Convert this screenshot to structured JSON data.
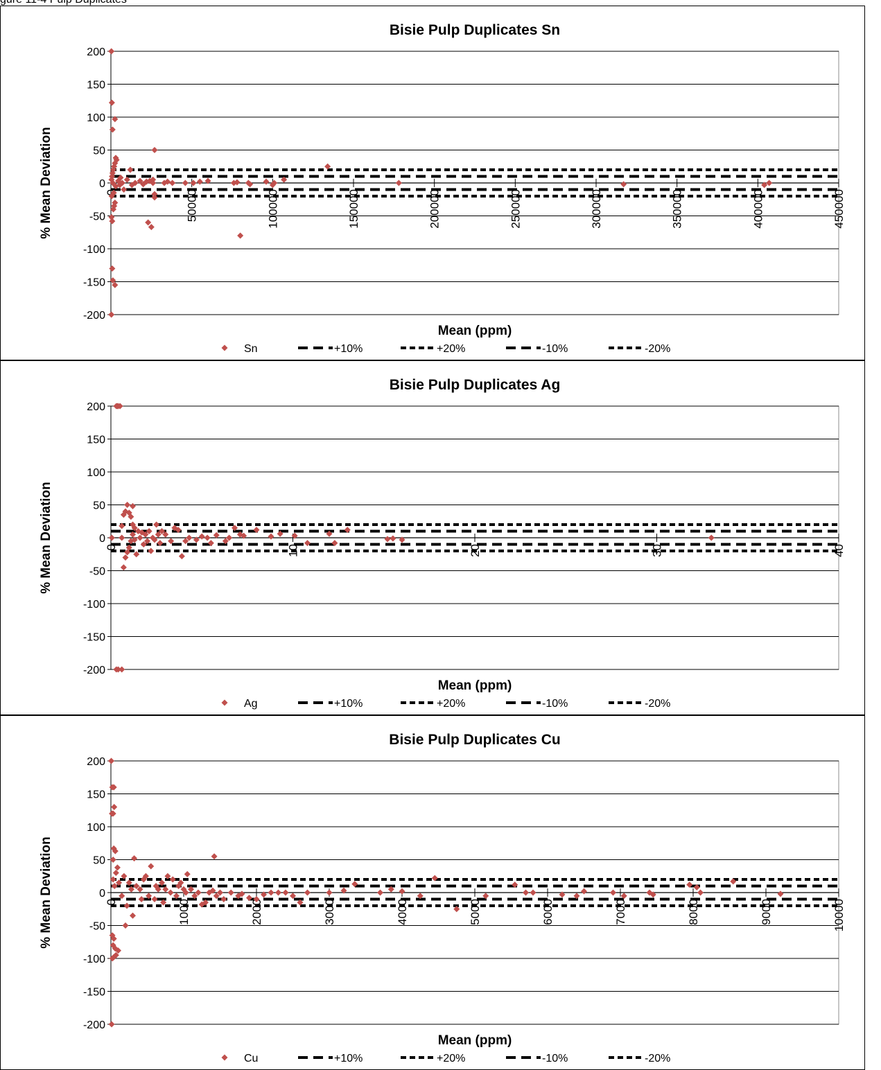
{
  "caption": "gure 11-4 Pulp Duplicates",
  "colors": {
    "points": "#c0504d",
    "limits": "#000000",
    "grid": "#000000"
  },
  "chart_data": [
    {
      "type": "scatter",
      "title": "Bisie Pulp Duplicates Sn",
      "xlabel": "Mean (ppm)",
      "ylabel": "% Mean Deviation",
      "xlim": [
        0,
        450000
      ],
      "ylim": [
        -200,
        200
      ],
      "xticks": [
        0,
        50000,
        100000,
        150000,
        200000,
        250000,
        300000,
        350000,
        400000,
        450000
      ],
      "yticks": [
        200,
        150,
        100,
        50,
        0,
        -50,
        -100,
        -150,
        -200
      ],
      "grid": "horizontal",
      "legend_position": "bottom",
      "legend": [
        "Sn",
        "+10%",
        "+20%",
        "-10%",
        "-20%"
      ],
      "limit_lines": {
        "+10%": 10,
        "+20%": 20,
        "-10%": -10,
        "-20%": -20
      },
      "series": [
        {
          "name": "Sn",
          "points": [
            [
              300,
              200
            ],
            [
              600,
              122
            ],
            [
              1000,
              81
            ],
            [
              2500,
              97
            ],
            [
              800,
              -130
            ],
            [
              1200,
              -148
            ],
            [
              2500,
              -155
            ],
            [
              300,
              -200
            ],
            [
              400,
              -52
            ],
            [
              800,
              -58
            ],
            [
              1500,
              -40
            ],
            [
              2000,
              -35
            ],
            [
              2500,
              -30
            ],
            [
              500,
              -20
            ],
            [
              1800,
              -15
            ],
            [
              400,
              5
            ],
            [
              700,
              10
            ],
            [
              1000,
              15
            ],
            [
              1500,
              20
            ],
            [
              2000,
              25
            ],
            [
              2500,
              30
            ],
            [
              3000,
              38
            ],
            [
              3500,
              35
            ],
            [
              1200,
              0
            ],
            [
              3000,
              -5
            ],
            [
              4500,
              3
            ],
            [
              5500,
              -3
            ],
            [
              6000,
              8
            ],
            [
              7000,
              0
            ],
            [
              8000,
              -10
            ],
            [
              10000,
              5
            ],
            [
              12000,
              20
            ],
            [
              13000,
              -3
            ],
            [
              15000,
              0
            ],
            [
              18000,
              3
            ],
            [
              20000,
              -2
            ],
            [
              22000,
              2
            ],
            [
              24000,
              3
            ],
            [
              23000,
              -60
            ],
            [
              25000,
              -67
            ],
            [
              26000,
              5
            ],
            [
              27000,
              50
            ],
            [
              27000,
              -17
            ],
            [
              27000,
              -22
            ],
            [
              26000,
              0
            ],
            [
              33000,
              0
            ],
            [
              35000,
              2
            ],
            [
              38000,
              0
            ],
            [
              46000,
              0
            ],
            [
              51000,
              0
            ],
            [
              55000,
              2
            ],
            [
              60000,
              3
            ],
            [
              76000,
              0
            ],
            [
              78000,
              1
            ],
            [
              80000,
              -80
            ],
            [
              85000,
              0
            ],
            [
              86000,
              -2
            ],
            [
              96000,
              2
            ],
            [
              100000,
              -3
            ],
            [
              101000,
              0
            ],
            [
              107000,
              5
            ],
            [
              134000,
              25
            ],
            [
              178000,
              0
            ],
            [
              317000,
              -2
            ],
            [
              404000,
              -3
            ],
            [
              407000,
              0
            ]
          ]
        },
        {
          "name": "+10%",
          "value": 10
        },
        {
          "name": "+20%",
          "value": 20
        },
        {
          "name": "-10%",
          "value": -10
        },
        {
          "name": "-20%",
          "value": -20
        }
      ]
    },
    {
      "type": "scatter",
      "title": "Bisie Pulp Duplicates Ag",
      "xlabel": "Mean (ppm)",
      "ylabel": "% Mean Deviation",
      "xlim": [
        0,
        40
      ],
      "ylim": [
        -200,
        200
      ],
      "xticks": [
        0,
        10,
        20,
        30,
        40
      ],
      "yticks": [
        200,
        150,
        100,
        50,
        0,
        -50,
        -100,
        -150,
        -200
      ],
      "grid": "horizontal",
      "legend_position": "bottom",
      "legend": [
        "Ag",
        "+10%",
        "+20%",
        "-10%",
        "-20%"
      ],
      "limit_lines": {
        "+10%": 10,
        "+20%": 20,
        "-10%": -10,
        "-20%": -20
      },
      "series": [
        {
          "name": "Ag",
          "points": [
            [
              0.05,
              0
            ],
            [
              0.3,
              200
            ],
            [
              0.35,
              200
            ],
            [
              0.4,
              200
            ],
            [
              0.5,
              200
            ],
            [
              0.3,
              -200
            ],
            [
              0.4,
              -200
            ],
            [
              0.6,
              -200
            ],
            [
              0.6,
              18
            ],
            [
              0.7,
              35
            ],
            [
              0.8,
              40
            ],
            [
              0.9,
              50
            ],
            [
              1.0,
              38
            ],
            [
              1.1,
              32
            ],
            [
              1.2,
              48
            ],
            [
              1.2,
              20
            ],
            [
              1.3,
              15
            ],
            [
              0.6,
              0
            ],
            [
              0.7,
              -45
            ],
            [
              0.8,
              -30
            ],
            [
              0.9,
              -22
            ],
            [
              1.0,
              -15
            ],
            [
              1.1,
              -5
            ],
            [
              1.2,
              5
            ],
            [
              1.3,
              -3
            ],
            [
              1.4,
              -25
            ],
            [
              1.5,
              10
            ],
            [
              1.6,
              0
            ],
            [
              1.7,
              8
            ],
            [
              1.8,
              -10
            ],
            [
              1.9,
              5
            ],
            [
              2.0,
              -5
            ],
            [
              2.1,
              10
            ],
            [
              2.2,
              -20
            ],
            [
              2.3,
              0
            ],
            [
              2.4,
              -3
            ],
            [
              2.5,
              20
            ],
            [
              2.6,
              5
            ],
            [
              2.7,
              -8
            ],
            [
              2.8,
              10
            ],
            [
              3.0,
              5
            ],
            [
              3.3,
              -5
            ],
            [
              3.5,
              15
            ],
            [
              3.7,
              12
            ],
            [
              3.9,
              -28
            ],
            [
              4.1,
              -5
            ],
            [
              4.3,
              0
            ],
            [
              4.7,
              -3
            ],
            [
              5.0,
              2
            ],
            [
              5.3,
              0
            ],
            [
              5.5,
              -8
            ],
            [
              5.8,
              4
            ],
            [
              6.3,
              -5
            ],
            [
              6.5,
              0
            ],
            [
              6.8,
              15
            ],
            [
              7.1,
              5
            ],
            [
              7.3,
              3
            ],
            [
              8.0,
              12
            ],
            [
              8.8,
              2
            ],
            [
              9.3,
              6
            ],
            [
              10.1,
              3
            ],
            [
              10.8,
              -8
            ],
            [
              12.0,
              6
            ],
            [
              12.3,
              -8
            ],
            [
              13.0,
              12
            ],
            [
              15.2,
              -2
            ],
            [
              15.5,
              -1
            ],
            [
              16.0,
              -3
            ],
            [
              33.0,
              0
            ]
          ]
        },
        {
          "name": "+10%",
          "value": 10
        },
        {
          "name": "+20%",
          "value": 20
        },
        {
          "name": "-10%",
          "value": -10
        },
        {
          "name": "-20%",
          "value": -20
        }
      ]
    },
    {
      "type": "scatter",
      "title": "Bisie Pulp Duplicates Cu",
      "xlabel": "Mean (ppm)",
      "ylabel": "% Mean Deviation",
      "xlim": [
        0,
        10000
      ],
      "ylim": [
        -200,
        200
      ],
      "xticks": [
        0,
        1000,
        2000,
        3000,
        4000,
        5000,
        6000,
        7000,
        8000,
        9000,
        10000
      ],
      "yticks": [
        200,
        150,
        100,
        50,
        0,
        -50,
        -100,
        -150,
        -200
      ],
      "grid": "horizontal",
      "legend_position": "bottom",
      "legend": [
        "Cu",
        "+10%",
        "+20%",
        "-10%",
        "-20%"
      ],
      "limit_lines": {
        "+10%": 10,
        "+20%": 20,
        "-10%": -10,
        "-20%": -20
      },
      "series": [
        {
          "name": "Cu",
          "points": [
            [
              5,
              200
            ],
            [
              20,
              160
            ],
            [
              40,
              160
            ],
            [
              45,
              130
            ],
            [
              30,
              120
            ],
            [
              15,
              120
            ],
            [
              40,
              67
            ],
            [
              60,
              63
            ],
            [
              30,
              50
            ],
            [
              20,
              -65
            ],
            [
              40,
              -70
            ],
            [
              30,
              -80
            ],
            [
              60,
              -85
            ],
            [
              100,
              -88
            ],
            [
              20,
              -100
            ],
            [
              40,
              -98
            ],
            [
              70,
              -95
            ],
            [
              10,
              -200
            ],
            [
              30,
              20
            ],
            [
              50,
              10
            ],
            [
              70,
              30
            ],
            [
              90,
              38
            ],
            [
              110,
              15
            ],
            [
              150,
              -5
            ],
            [
              180,
              25
            ],
            [
              200,
              -50
            ],
            [
              220,
              -20
            ],
            [
              250,
              15
            ],
            [
              280,
              5
            ],
            [
              300,
              -35
            ],
            [
              320,
              52
            ],
            [
              350,
              10
            ],
            [
              400,
              5
            ],
            [
              420,
              -10
            ],
            [
              450,
              20
            ],
            [
              480,
              25
            ],
            [
              520,
              -5
            ],
            [
              550,
              40
            ],
            [
              600,
              -10
            ],
            [
              620,
              10
            ],
            [
              650,
              5
            ],
            [
              700,
              15
            ],
            [
              720,
              -15
            ],
            [
              750,
              5
            ],
            [
              780,
              25
            ],
            [
              820,
              0
            ],
            [
              850,
              20
            ],
            [
              900,
              -5
            ],
            [
              930,
              10
            ],
            [
              960,
              15
            ],
            [
              1000,
              5
            ],
            [
              1030,
              0
            ],
            [
              1050,
              28
            ],
            [
              1100,
              5
            ],
            [
              1150,
              -5
            ],
            [
              1200,
              0
            ],
            [
              1250,
              -18
            ],
            [
              1300,
              -15
            ],
            [
              1350,
              0
            ],
            [
              1400,
              3
            ],
            [
              1420,
              55
            ],
            [
              1450,
              -5
            ],
            [
              1500,
              0
            ],
            [
              1550,
              -10
            ],
            [
              1650,
              0
            ],
            [
              1750,
              -5
            ],
            [
              1800,
              -2
            ],
            [
              1900,
              -8
            ],
            [
              2000,
              -10
            ],
            [
              2100,
              -3
            ],
            [
              2200,
              0
            ],
            [
              2300,
              0
            ],
            [
              2400,
              0
            ],
            [
              2500,
              -5
            ],
            [
              2600,
              -15
            ],
            [
              2700,
              0
            ],
            [
              3000,
              0
            ],
            [
              3200,
              3
            ],
            [
              3350,
              13
            ],
            [
              3700,
              0
            ],
            [
              3850,
              5
            ],
            [
              4000,
              2
            ],
            [
              4250,
              -5
            ],
            [
              4450,
              22
            ],
            [
              4750,
              -25
            ],
            [
              5150,
              -5
            ],
            [
              5550,
              12
            ],
            [
              5700,
              0
            ],
            [
              5800,
              0
            ],
            [
              6200,
              -3
            ],
            [
              6400,
              -5
            ],
            [
              6500,
              2
            ],
            [
              6900,
              0
            ],
            [
              7050,
              -5
            ],
            [
              7400,
              0
            ],
            [
              7450,
              -3
            ],
            [
              7950,
              12
            ],
            [
              8050,
              8
            ],
            [
              8100,
              0
            ],
            [
              8550,
              17
            ],
            [
              9200,
              -2
            ]
          ]
        },
        {
          "name": "+10%",
          "value": 10
        },
        {
          "name": "+20%",
          "value": 20
        },
        {
          "name": "-10%",
          "value": -10
        },
        {
          "name": "-20%",
          "value": -20
        }
      ]
    }
  ]
}
